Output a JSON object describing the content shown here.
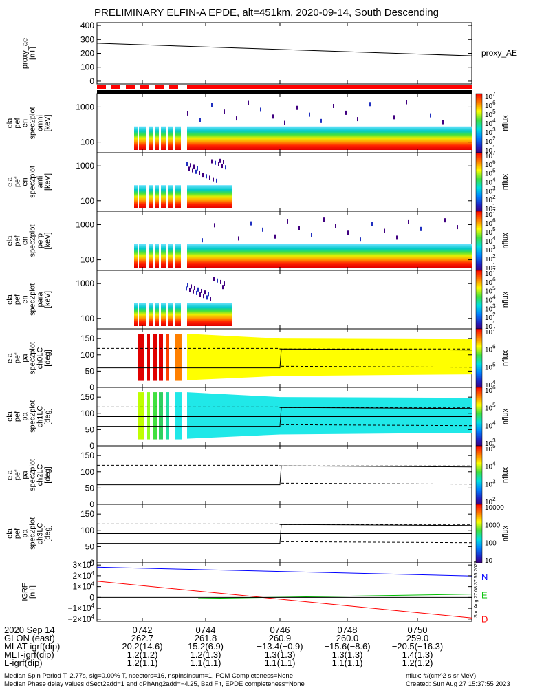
{
  "title": "PRELIMINARY ELFIN-A EPDE, alt=451km, 2020-09-14, South Descending",
  "colors": {
    "ae_line": "#000000",
    "coverage_red": "#ff0000",
    "coverage_black": "#000000",
    "igrf_n": "#0000ff",
    "igrf_e": "#00c000",
    "igrf_d": "#ff0000"
  },
  "chart_data": [
    {
      "type": "line",
      "panel": "proxy_ae",
      "ylabel": [
        "proxy_ae",
        "[nT]"
      ],
      "yticks": [
        "400",
        "300",
        "200",
        "100",
        "0"
      ],
      "ylim": [
        -20,
        420
      ],
      "series": [
        {
          "name": "proxy_AE",
          "x": [
            0,
            1
          ],
          "y": [
            272,
            182
          ]
        }
      ]
    },
    {
      "type": "heatmap",
      "panel": "spec2plot_omni",
      "ylabel": [
        "ela",
        "pef",
        "en",
        "spec2plot",
        "omni",
        "[keV]"
      ],
      "yticks": [
        "1000",
        "100"
      ],
      "ylog": true,
      "colorbar": {
        "label": "nflux",
        "ticks": [
          "10^7",
          "10^6",
          "10^5",
          "10^4",
          "10^3",
          "10^2",
          "10^1"
        ]
      }
    },
    {
      "type": "heatmap",
      "panel": "spec2plot_anti",
      "ylabel": [
        "ela",
        "pef",
        "en",
        "spec2plot",
        "anti",
        "[keV]"
      ],
      "yticks": [
        "1000",
        "100"
      ],
      "ylog": true,
      "colorbar": {
        "label": "nflux",
        "ticks": [
          "10^7",
          "10^6",
          "10^5",
          "10^4",
          "10^3",
          "10^2",
          "10^1"
        ]
      }
    },
    {
      "type": "heatmap",
      "panel": "spec2plot_perp",
      "ylabel": [
        "ela",
        "pef",
        "en",
        "spec2plot",
        "perp",
        "[keV]"
      ],
      "yticks": [
        "1000",
        "100"
      ],
      "ylog": true,
      "colorbar": {
        "label": "nflux",
        "ticks": [
          "10^7",
          "10^6",
          "10^5",
          "10^4",
          "10^3",
          "10^2",
          "10^1"
        ]
      }
    },
    {
      "type": "heatmap",
      "panel": "spec2plot_para",
      "ylabel": [
        "ela",
        "pef",
        "en",
        "spec2plot",
        "para",
        "[keV]"
      ],
      "yticks": [
        "1000",
        "100"
      ],
      "ylog": true,
      "colorbar": {
        "label": "nflux",
        "ticks": [
          "10^7",
          "10^6",
          "10^5",
          "10^4",
          "10^3",
          "10^2",
          "10^1"
        ]
      }
    },
    {
      "type": "heatmap",
      "panel": "spec2plot_ch0LC",
      "ylabel": [
        "ela",
        "pef",
        "pa",
        "spec2plot",
        "ch0LC",
        "[deg]"
      ],
      "yticks": [
        "150",
        "100",
        "50",
        "0"
      ],
      "ylim": [
        0,
        180
      ],
      "colorbar": {
        "label": "nflux",
        "ticks": [
          "10^7",
          "10^6",
          "10^5",
          "10^4"
        ]
      }
    },
    {
      "type": "heatmap",
      "panel": "spec2plot_ch1LC",
      "ylabel": [
        "ela",
        "pef",
        "pa",
        "spec2plot",
        "ch1LC",
        "[deg]"
      ],
      "yticks": [
        "150",
        "100",
        "50",
        "0"
      ],
      "ylim": [
        0,
        180
      ],
      "colorbar": {
        "label": "nflux",
        "ticks": [
          "10^6",
          "10^5",
          "10^4",
          "10^3"
        ]
      }
    },
    {
      "type": "heatmap",
      "panel": "spec2plot_ch2LC",
      "ylabel": [
        "ela",
        "pef",
        "pa",
        "spec2plot",
        "ch2LC",
        "[deg]"
      ],
      "yticks": [
        "150",
        "100",
        "50",
        "0"
      ],
      "ylim": [
        0,
        180
      ],
      "colorbar": {
        "label": "nflux",
        "ticks": [
          "10^5",
          "10^4",
          "10^3",
          "10^2"
        ]
      }
    },
    {
      "type": "heatmap",
      "panel": "spec2plot_ch3LC",
      "ylabel": [
        "ela",
        "pef",
        "pa",
        "spec2plot",
        "ch3LC",
        "[deg]"
      ],
      "yticks": [
        "150",
        "100",
        "50",
        "0"
      ],
      "ylim": [
        0,
        180
      ],
      "colorbar": {
        "label": "nflux",
        "ticks": [
          "10000",
          "1000",
          "100",
          "10"
        ]
      }
    },
    {
      "type": "line",
      "panel": "IGRF",
      "ylabel": [
        "IGRF",
        "[nT]"
      ],
      "yticks": [
        "3×10^4",
        "2×10^4",
        "1×10^4",
        "0",
        "−1×10^4",
        "−2×10^4"
      ],
      "ylim": [
        -22000,
        32000
      ],
      "series": [
        {
          "name": "N",
          "x": [
            0,
            1
          ],
          "y": [
            28000,
            19800
          ]
        },
        {
          "name": "E",
          "x": [
            0.27,
            1
          ],
          "y": [
            -1000,
            3000
          ]
        },
        {
          "name": "D",
          "x": [
            0,
            1
          ],
          "y": [
            15000,
            -19000
          ]
        }
      ]
    }
  ],
  "xaxis": {
    "ticks": [
      "0742",
      "0744",
      "0746",
      "0748",
      "0750"
    ],
    "rows": [
      {
        "label": "2020 Sep 14",
        "values": [
          "0742",
          "0744",
          "0746",
          "0748",
          "0750"
        ]
      },
      {
        "label": "GLON (east)",
        "values": [
          "262.7",
          "261.8",
          "260.9",
          "260.0",
          "259.0"
        ]
      },
      {
        "label": "MLAT-igrf(dip)",
        "values": [
          "20.2(14.6)",
          "15.2(6.9)",
          "−13.4(−0.9)",
          "−15.6(−8.6)",
          "−20.5(−16.3)"
        ]
      },
      {
        "label": "MLT-igrf(dip)",
        "values": [
          "1.2(1.2)",
          "1.2(1.3)",
          "1.3(1.3)",
          "1.3(1.3)",
          "1.4(1.3)"
        ]
      },
      {
        "label": "L-igrf(dip)",
        "values": [
          "1.2(1.1)",
          "1.1(1.1)",
          "1.1(1.1)",
          "1.1(1.1)",
          "1.2(1.2)"
        ]
      }
    ]
  },
  "footer": {
    "line1": "Median Spin Period T: 2.77s, sig=0.00% T, nsectors=16, nspinsinsum=1, FGM Completeness=None",
    "line2": "Median Phase delay values dSect2add=1 and dPhAng2add=−4.25, Bad Fit, EPDE completeness=None",
    "units": "nflux: #/(cm^2 s sr MeV)",
    "created": "Created: Sun Aug 27 15:37:55 2023",
    "side_stamp": "Sun Aug 27 08:37:55 2023"
  }
}
